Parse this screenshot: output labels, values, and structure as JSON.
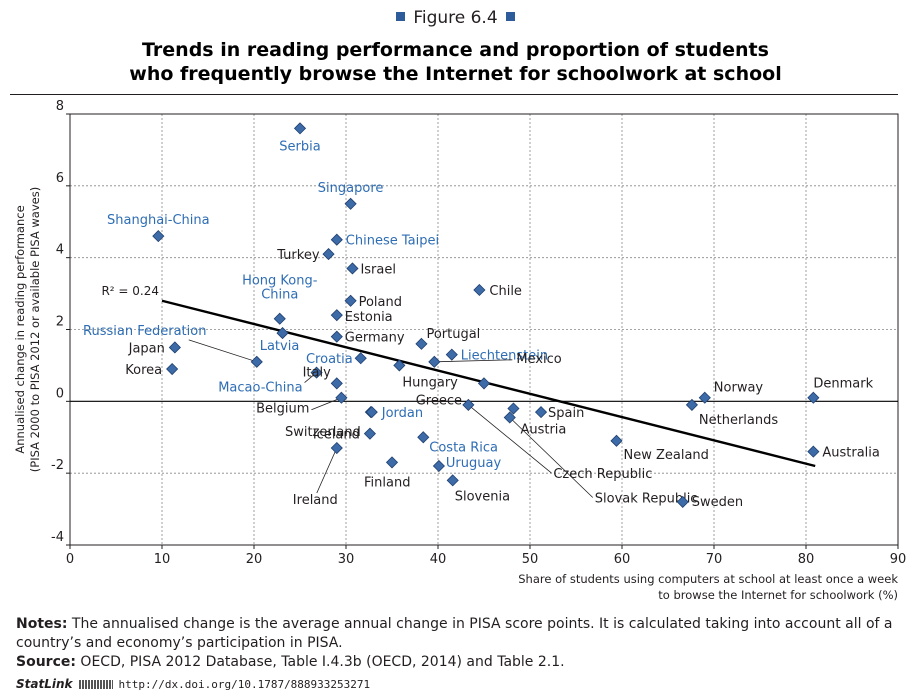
{
  "figure": {
    "label": "Figure 6.4",
    "title_line1": "Trends in reading performance and proportion of students",
    "title_line2": "who frequently browse the Internet for schoolwork at school"
  },
  "notes": {
    "notes_label": "Notes:",
    "notes_text": "The annualised change is the average annual change in PISA score points. It is calculated taking into account all of a country’s and economy’s participation in PISA.",
    "source_label": "Source:",
    "source_text": "OECD, PISA 2012 Database, Table I.4.3b (OECD, 2014) and Table 2.1.",
    "statlink_label": "StatLink",
    "statlink_url": "http://dx.doi.org/10.1787/888933253271"
  },
  "colors": {
    "marker": "#3d6ba8",
    "marker_stroke": "#1f3f6e",
    "highlight_label": "#2e6db4",
    "label": "#231f20",
    "grid": "#888888",
    "trend": "#000000"
  },
  "chart_data": {
    "type": "scatter",
    "ylabel_line1": "Annualised change in reading performance",
    "ylabel_line2": "(PISA 2000 to PISA 2012 or available PISA waves)",
    "xlabel_line1": "Share of students using computers at school at least once a week",
    "xlabel_line2": "to browse the Internet for schoolwork (%)",
    "xlim": [
      0,
      90
    ],
    "ylim": [
      -4,
      8
    ],
    "x_ticks": [
      "0",
      "10",
      "20",
      "30",
      "40",
      "50",
      "60",
      "70",
      "80",
      "90"
    ],
    "y_ticks": [
      "8",
      "6",
      "4",
      "2",
      "0",
      "-2",
      "-4"
    ],
    "grid": "dashed",
    "r2_label": "R² = 0.24",
    "trendline": {
      "x": [
        10,
        81
      ],
      "y": [
        2.8,
        -1.8
      ]
    },
    "points": [
      {
        "name": "Serbia",
        "x": 25,
        "y": 7.6,
        "highlight": true
      },
      {
        "name": "Singapore",
        "x": 30.5,
        "y": 5.5,
        "highlight": true
      },
      {
        "name": "Shanghai-China",
        "x": 9.6,
        "y": 4.6,
        "highlight": true
      },
      {
        "name": "Chinese Taipei",
        "x": 29,
        "y": 4.5,
        "highlight": true
      },
      {
        "name": "Turkey",
        "x": 28.1,
        "y": 4.1,
        "highlight": false
      },
      {
        "name": "Israel",
        "x": 30.7,
        "y": 3.7,
        "highlight": false
      },
      {
        "name": "Chile",
        "x": 44.5,
        "y": 3.1,
        "highlight": false
      },
      {
        "name": "Poland",
        "x": 30.5,
        "y": 2.8,
        "highlight": false
      },
      {
        "name": "Hong Kong-China",
        "x": 22.8,
        "y": 2.3,
        "highlight": true
      },
      {
        "name": "Estonia",
        "x": 29,
        "y": 2.4,
        "highlight": false
      },
      {
        "name": "Russian Federation",
        "x": 20.3,
        "y": 1.1,
        "highlight": true
      },
      {
        "name": "Latvia",
        "x": 23.1,
        "y": 1.9,
        "highlight": true
      },
      {
        "name": "Germany",
        "x": 29,
        "y": 1.8,
        "highlight": false
      },
      {
        "name": "Japan",
        "x": 11.4,
        "y": 1.5,
        "highlight": false
      },
      {
        "name": "Portugal",
        "x": 38.2,
        "y": 1.6,
        "highlight": false
      },
      {
        "name": "Liechtenstein",
        "x": 41.5,
        "y": 1.3,
        "highlight": true
      },
      {
        "name": "Croatia",
        "x": 31.6,
        "y": 1.2,
        "highlight": true
      },
      {
        "name": "Hungary",
        "x": 35.8,
        "y": 1.0,
        "highlight": false
      },
      {
        "name": "Korea",
        "x": 11.1,
        "y": 0.9,
        "highlight": false
      },
      {
        "name": "Mexico",
        "x": 39.6,
        "y": 1.1,
        "highlight": false
      },
      {
        "name": "Macao-China",
        "x": 26.8,
        "y": 0.8,
        "highlight": true
      },
      {
        "name": "Italy",
        "x": 29,
        "y": 0.5,
        "highlight": false
      },
      {
        "name": "Greece",
        "x": 45,
        "y": 0.5,
        "highlight": false
      },
      {
        "name": "Norway",
        "x": 69,
        "y": 0.1,
        "highlight": false
      },
      {
        "name": "Denmark",
        "x": 80.8,
        "y": 0.1,
        "highlight": false
      },
      {
        "name": "Belgium",
        "x": 29.5,
        "y": 0.1,
        "highlight": false
      },
      {
        "name": "Netherlands",
        "x": 67.6,
        "y": -0.1,
        "highlight": false
      },
      {
        "name": "Czech Republic",
        "x": 43.3,
        "y": -0.1,
        "highlight": false
      },
      {
        "name": "Austria",
        "x": 48.2,
        "y": -0.2,
        "highlight": false
      },
      {
        "name": "Switzerland",
        "x": 32.7,
        "y": -0.3,
        "highlight": false
      },
      {
        "name": "Jordan",
        "x": 32.8,
        "y": -0.3,
        "highlight": true
      },
      {
        "name": "Spain",
        "x": 51.2,
        "y": -0.3,
        "highlight": false
      },
      {
        "name": "Slovak Republic",
        "x": 47.8,
        "y": -0.45,
        "highlight": false
      },
      {
        "name": "Iceland",
        "x": 32.6,
        "y": -0.9,
        "highlight": false
      },
      {
        "name": "Costa Rica",
        "x": 38.4,
        "y": -1.0,
        "highlight": true
      },
      {
        "name": "New Zealand",
        "x": 59.4,
        "y": -1.1,
        "highlight": false
      },
      {
        "name": "Australia",
        "x": 80.8,
        "y": -1.4,
        "highlight": false
      },
      {
        "name": "Ireland",
        "x": 29,
        "y": -1.3,
        "highlight": false
      },
      {
        "name": "Finland",
        "x": 35,
        "y": -1.7,
        "highlight": false
      },
      {
        "name": "Uruguay",
        "x": 40.1,
        "y": -1.8,
        "highlight": true
      },
      {
        "name": "Slovenia",
        "x": 41.6,
        "y": -2.2,
        "highlight": false
      },
      {
        "name": "Sweden",
        "x": 66.6,
        "y": -2.8,
        "highlight": false
      }
    ]
  }
}
